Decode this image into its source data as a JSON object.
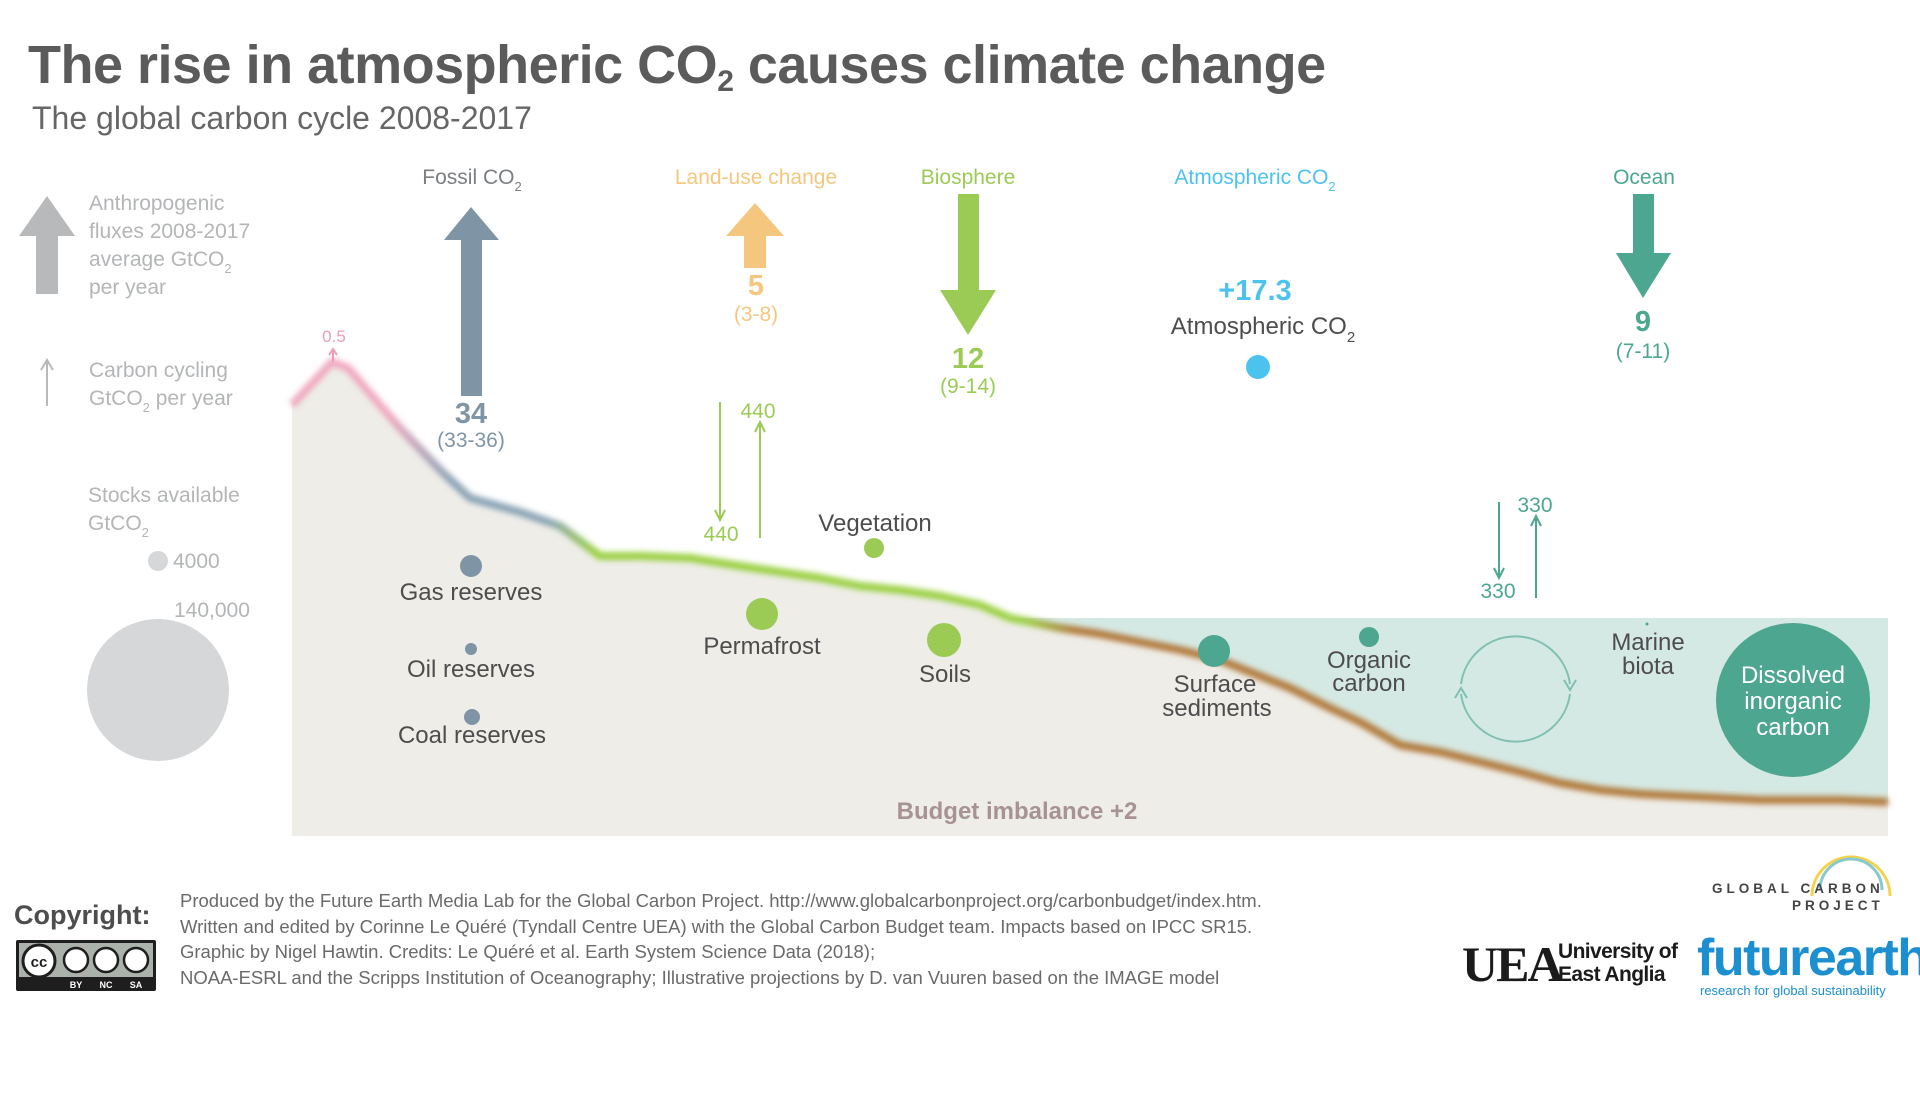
{
  "header": {
    "title_main": "The rise in atmospheric  CO",
    "title_sub": "2",
    "title_end": " causes climate change",
    "subtitle": "The global carbon cycle 2008-2017"
  },
  "legend": {
    "flux_line1": "Anthropogenic",
    "flux_line2": "fluxes 2008-2017",
    "flux_line3": "average GtCO",
    "flux_line3_sub": "2",
    "flux_line4": "per year",
    "cycle_line1": "Carbon cycling",
    "cycle_line2": "GtCO",
    "cycle_line2_sub": "2",
    "cycle_line2_end": " per year",
    "stocks_line1": "Stocks available",
    "stocks_line2": "GtCO",
    "stocks_line2_sub": "2",
    "small_stock": "4000",
    "large_stock": "140,000"
  },
  "categories": {
    "fossil": "Fossil CO",
    "fossil_sub": "2",
    "landuse": "Land-use change",
    "biosphere": "Biosphere",
    "atmospheric": "Atmospheric CO",
    "atmospheric_sub": "2",
    "ocean": "Ocean"
  },
  "fluxes": {
    "fossil_value": "34",
    "fossil_range": "(33-36)",
    "landuse_value": "5",
    "landuse_range": "(3-8)",
    "biosphere_value": "12",
    "biosphere_range": "(9-14)",
    "atmos_value": "+17.3",
    "atmos_label": "Atmospheric CO",
    "atmos_label_sub": "2",
    "ocean_value": "9",
    "ocean_range": "(7-11)",
    "volcanic": "0.5",
    "land_cycle_down": "440",
    "land_cycle_up": "440",
    "ocean_cycle_down": "330",
    "ocean_cycle_up": "330"
  },
  "stocks": {
    "gas": "Gas reserves",
    "oil": "Oil reserves",
    "coal": "Coal reserves",
    "vegetation": "Vegetation",
    "permafrost": "Permafrost",
    "soils": "Soils",
    "surface_sediments_1": "Surface",
    "surface_sediments_2": "sediments",
    "organic_carbon_1": "Organic",
    "organic_carbon_2": "carbon",
    "marine_biota_1": "Marine",
    "marine_biota_2": "biota",
    "dic_1": "Dissolved",
    "dic_2": "inorganic",
    "dic_3": "carbon",
    "budget_imbalance": "Budget imbalance +2"
  },
  "footer": {
    "copyright_label": "Copyright:",
    "cc_by": "BY",
    "cc_nc": "NC",
    "cc_sa": "SA",
    "line1": "Produced by the Future Earth Media Lab for the Global Carbon Project. http://www.globalcarbonproject.org/carbonbudget/index.htm.",
    "line2": "Written and edited by Corinne Le Quéré (Tyndall Centre UEA) with the Global Carbon Budget team. Impacts based on IPCC SR15.",
    "line3": "Graphic by Nigel Hawtin. Credits: Le Quéré et al. Earth System Science Data (2018);",
    "line4": "NOAA-ESRL and the Scripps Institution of Oceanography; Illustrative projections by D. van Vuuren based on the IMAGE model"
  },
  "logos": {
    "gcp_line1": "GLOBAL  CARBON",
    "gcp_line2": "PROJECT",
    "uea_mark": "UEA",
    "uea_line1": "University of",
    "uea_line2": "East Anglia",
    "futureearth": "futurearth",
    "futureearth_tag": "research for global sustainability"
  },
  "colors": {
    "fossil": "#7f95a6",
    "landuse": "#f5c77e",
    "biosphere": "#9ccb55",
    "atmospheric": "#4cc3ee",
    "ocean": "#4da68f",
    "ground": "#eeede8",
    "sea": "#d5e9e4",
    "sediment": "#b78a4a",
    "budget": "#a79391",
    "volcanic": "#ee9cb8",
    "legend_grey": "#b7b9bb"
  }
}
